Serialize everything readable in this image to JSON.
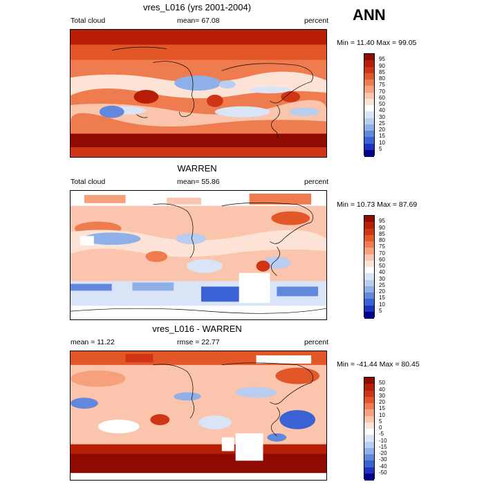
{
  "season": "ANN",
  "panels": [
    {
      "title": "vres_L016 (yrs 2001-2004)",
      "left_label": "Total cloud",
      "center_label": "mean=  67.08",
      "right_label": "percent",
      "minmax": "Min =  11.40 Max =  99.05",
      "colorbar_labels": [
        "95",
        "90",
        "85",
        "80",
        "75",
        "70",
        "60",
        "50",
        "40",
        "30",
        "25",
        "20",
        "15",
        "10",
        "5"
      ],
      "colorbar_colors": [
        "#8f0a00",
        "#b81e06",
        "#cf3514",
        "#e25628",
        "#ee7c4f",
        "#f7a07e",
        "#fbc4ac",
        "#fce3d6",
        "#ffffff",
        "#d9e4f7",
        "#b8cdf0",
        "#8eafe8",
        "#6288de",
        "#3b62d4",
        "#1c33c2",
        "#00008c"
      ]
    },
    {
      "title": "WARREN",
      "left_label": "Total cloud",
      "center_label": "mean=  55.86",
      "right_label": "percent",
      "minmax": "Min =  10.73 Max =  87.69",
      "colorbar_labels": [
        "95",
        "90",
        "85",
        "80",
        "75",
        "70",
        "60",
        "50",
        "40",
        "30",
        "25",
        "20",
        "15",
        "10",
        "5"
      ],
      "colorbar_colors": [
        "#8f0a00",
        "#b81e06",
        "#cf3514",
        "#e25628",
        "#ee7c4f",
        "#f7a07e",
        "#fbc4ac",
        "#fce3d6",
        "#ffffff",
        "#d9e4f7",
        "#b8cdf0",
        "#8eafe8",
        "#6288de",
        "#3b62d4",
        "#1c33c2",
        "#00008c"
      ]
    },
    {
      "title": "vres_L016 - WARREN",
      "left_label": "mean =  11.22",
      "center_label": "rmse =  22.77",
      "right_label": "percent",
      "minmax": "Min = -41.44 Max =  80.45",
      "colorbar_labels": [
        "50",
        "40",
        "30",
        "20",
        "15",
        "10",
        "5",
        "0",
        "-5",
        "-10",
        "-15",
        "-20",
        "-30",
        "-40",
        "-50"
      ],
      "colorbar_colors": [
        "#8f0a00",
        "#b81e06",
        "#cf3514",
        "#e25628",
        "#ee7c4f",
        "#f7a07e",
        "#fbc4ac",
        "#fce3d6",
        "#ffffff",
        "#d9e4f7",
        "#b8cdf0",
        "#8eafe8",
        "#6288de",
        "#3b62d4",
        "#1c33c2",
        "#00008c"
      ]
    }
  ]
}
